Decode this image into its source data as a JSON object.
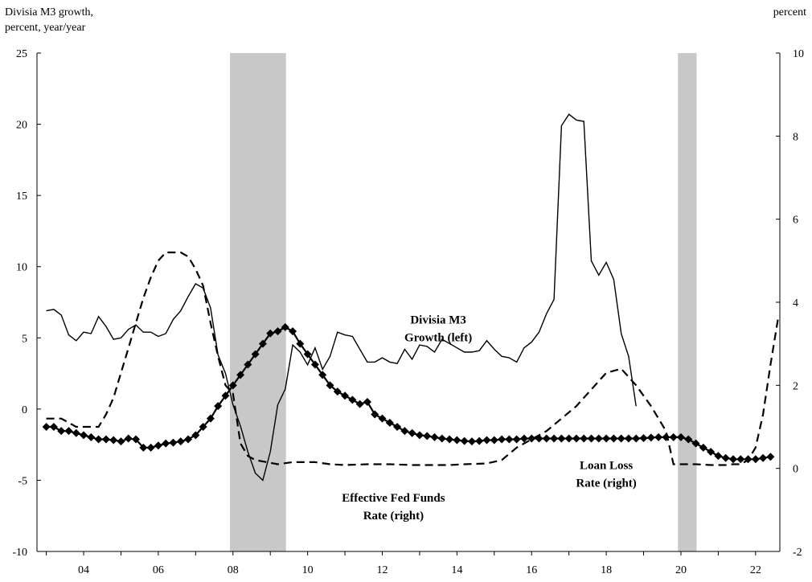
{
  "chart_data": {
    "type": "line",
    "left_axis_title_line1": "Divisia  M3 growth,",
    "left_axis_title_line2": "percent,  year/year",
    "right_axis_title": "percent",
    "ylim_left": [
      -10,
      25
    ],
    "ylim_right": [
      -2,
      10
    ],
    "xlim": [
      2002.75,
      2022.65
    ],
    "left_ticks": [
      "25",
      "20",
      "15",
      "10",
      "5",
      "0",
      "-5",
      "-10"
    ],
    "left_tick_values": [
      25,
      20,
      15,
      10,
      5,
      0,
      -5,
      -10
    ],
    "right_ticks": [
      "10",
      "8",
      "6",
      "4",
      "2",
      "0",
      "-2"
    ],
    "right_tick_values": [
      10,
      8,
      6,
      4,
      2,
      0,
      -2
    ],
    "x_tick_labels": [
      "04",
      "06",
      "08",
      "10",
      "12",
      "14",
      "16",
      "18",
      "20",
      "22"
    ],
    "x_tick_values": [
      2004,
      2006,
      2008,
      2010,
      2012,
      2014,
      2016,
      2018,
      2020,
      2022
    ],
    "recessions": [
      [
        2007.92,
        2009.42
      ],
      [
        2019.92,
        2020.42
      ]
    ],
    "annotations": [
      {
        "lines": [
          "Divisia M3",
          "Growth (left)"
        ],
        "x": 2013.5,
        "y": 6.0,
        "axis": "left"
      },
      {
        "lines": [
          "Effective Fed Funds",
          "Rate (right)"
        ],
        "x": 2012.3,
        "y": -6.5,
        "axis": "left"
      },
      {
        "lines": [
          "Loan Loss",
          "Rate (right)"
        ],
        "x": 2018.0,
        "y": -4.2,
        "axis": "left"
      }
    ],
    "series": [
      {
        "key": "m3",
        "axis": "left",
        "style": "solid",
        "points": [
          [
            2003.0,
            6.9
          ],
          [
            2003.2,
            7.0
          ],
          [
            2003.4,
            6.6
          ],
          [
            2003.6,
            5.2
          ],
          [
            2003.8,
            4.8
          ],
          [
            2004.0,
            5.4
          ],
          [
            2004.2,
            5.3
          ],
          [
            2004.4,
            6.5
          ],
          [
            2004.6,
            5.8
          ],
          [
            2004.8,
            4.9
          ],
          [
            2005.0,
            5.0
          ],
          [
            2005.2,
            5.6
          ],
          [
            2005.4,
            5.9
          ],
          [
            2005.6,
            5.4
          ],
          [
            2005.8,
            5.4
          ],
          [
            2006.0,
            5.1
          ],
          [
            2006.2,
            5.3
          ],
          [
            2006.4,
            6.3
          ],
          [
            2006.6,
            6.9
          ],
          [
            2006.8,
            7.9
          ],
          [
            2007.0,
            8.8
          ],
          [
            2007.2,
            8.5
          ],
          [
            2007.4,
            7.1
          ],
          [
            2007.6,
            3.8
          ],
          [
            2007.8,
            2.5
          ],
          [
            2008.0,
            0.3
          ],
          [
            2008.2,
            -1.2
          ],
          [
            2008.4,
            -3.0
          ],
          [
            2008.6,
            -4.5
          ],
          [
            2008.8,
            -5.0
          ],
          [
            2009.0,
            -3.0
          ],
          [
            2009.2,
            0.3
          ],
          [
            2009.4,
            1.4
          ],
          [
            2009.6,
            4.5
          ],
          [
            2009.8,
            4.0
          ],
          [
            2010.0,
            3.1
          ],
          [
            2010.2,
            4.3
          ],
          [
            2010.4,
            2.8
          ],
          [
            2010.6,
            3.7
          ],
          [
            2010.8,
            5.4
          ],
          [
            2011.0,
            5.2
          ],
          [
            2011.2,
            5.1
          ],
          [
            2011.4,
            4.2
          ],
          [
            2011.6,
            3.3
          ],
          [
            2011.8,
            3.3
          ],
          [
            2012.0,
            3.6
          ],
          [
            2012.2,
            3.3
          ],
          [
            2012.4,
            3.2
          ],
          [
            2012.6,
            4.2
          ],
          [
            2012.8,
            3.5
          ],
          [
            2013.0,
            4.5
          ],
          [
            2013.2,
            4.4
          ],
          [
            2013.4,
            4.0
          ],
          [
            2013.6,
            4.9
          ],
          [
            2013.8,
            4.6
          ],
          [
            2014.0,
            4.3
          ],
          [
            2014.2,
            4.0
          ],
          [
            2014.4,
            4.0
          ],
          [
            2014.6,
            4.1
          ],
          [
            2014.8,
            4.8
          ],
          [
            2015.0,
            4.2
          ],
          [
            2015.2,
            3.7
          ],
          [
            2015.4,
            3.6
          ],
          [
            2015.6,
            3.3
          ],
          [
            2015.8,
            4.3
          ],
          [
            2016.0,
            4.7
          ],
          [
            2016.2,
            5.4
          ],
          [
            2016.4,
            6.7
          ],
          [
            2016.6,
            7.7
          ],
          [
            2016.8,
            19.9
          ],
          [
            2017.0,
            20.7
          ],
          [
            2017.2,
            20.3
          ],
          [
            2017.4,
            20.2
          ],
          [
            2017.6,
            10.4
          ],
          [
            2017.8,
            9.4
          ],
          [
            2018.0,
            10.3
          ],
          [
            2018.2,
            9.1
          ],
          [
            2018.4,
            5.3
          ],
          [
            2018.6,
            3.7
          ],
          [
            2018.8,
            0.2
          ]
        ]
      },
      {
        "key": "fedfunds",
        "axis": "right",
        "style": "marker",
        "points": [
          [
            2003.0,
            1.0
          ],
          [
            2003.2,
            1.0
          ],
          [
            2003.4,
            0.9
          ],
          [
            2003.6,
            0.9
          ],
          [
            2003.8,
            0.85
          ],
          [
            2004.0,
            0.8
          ],
          [
            2004.2,
            0.75
          ],
          [
            2004.4,
            0.7
          ],
          [
            2004.6,
            0.7
          ],
          [
            2004.8,
            0.68
          ],
          [
            2005.0,
            0.65
          ],
          [
            2005.2,
            0.72
          ],
          [
            2005.4,
            0.7
          ],
          [
            2005.6,
            0.5
          ],
          [
            2005.8,
            0.5
          ],
          [
            2006.0,
            0.55
          ],
          [
            2006.2,
            0.6
          ],
          [
            2006.4,
            0.62
          ],
          [
            2006.6,
            0.65
          ],
          [
            2006.8,
            0.7
          ],
          [
            2007.0,
            0.8
          ],
          [
            2007.2,
            1.0
          ],
          [
            2007.4,
            1.2
          ],
          [
            2007.6,
            1.5
          ],
          [
            2007.8,
            1.75
          ],
          [
            2008.0,
            2.0
          ],
          [
            2008.2,
            2.25
          ],
          [
            2008.4,
            2.5
          ],
          [
            2008.6,
            2.75
          ],
          [
            2008.8,
            3.0
          ],
          [
            2009.0,
            3.25
          ],
          [
            2009.2,
            3.3
          ],
          [
            2009.4,
            3.4
          ],
          [
            2009.6,
            3.3
          ],
          [
            2009.8,
            3.0
          ],
          [
            2010.0,
            2.75
          ],
          [
            2010.2,
            2.5
          ],
          [
            2010.4,
            2.25
          ],
          [
            2010.6,
            2.0
          ],
          [
            2010.8,
            1.85
          ],
          [
            2011.0,
            1.75
          ],
          [
            2011.2,
            1.65
          ],
          [
            2011.4,
            1.55
          ],
          [
            2011.6,
            1.6
          ],
          [
            2011.8,
            1.3
          ],
          [
            2012.0,
            1.2
          ],
          [
            2012.2,
            1.1
          ],
          [
            2012.4,
            1.0
          ],
          [
            2012.6,
            0.9
          ],
          [
            2012.8,
            0.85
          ],
          [
            2013.0,
            0.8
          ],
          [
            2013.2,
            0.78
          ],
          [
            2013.4,
            0.75
          ],
          [
            2013.6,
            0.72
          ],
          [
            2013.8,
            0.7
          ],
          [
            2014.0,
            0.68
          ],
          [
            2014.2,
            0.66
          ],
          [
            2014.4,
            0.65
          ],
          [
            2014.6,
            0.66
          ],
          [
            2014.8,
            0.68
          ],
          [
            2015.0,
            0.68
          ],
          [
            2015.2,
            0.7
          ],
          [
            2015.4,
            0.7
          ],
          [
            2015.6,
            0.7
          ],
          [
            2015.8,
            0.72
          ],
          [
            2016.0,
            0.72
          ],
          [
            2016.2,
            0.72
          ],
          [
            2016.4,
            0.72
          ],
          [
            2016.6,
            0.72
          ],
          [
            2016.8,
            0.72
          ],
          [
            2017.0,
            0.72
          ],
          [
            2017.2,
            0.72
          ],
          [
            2017.4,
            0.72
          ],
          [
            2017.6,
            0.72
          ],
          [
            2017.8,
            0.72
          ],
          [
            2018.0,
            0.72
          ],
          [
            2018.2,
            0.72
          ],
          [
            2018.4,
            0.72
          ],
          [
            2018.6,
            0.72
          ],
          [
            2018.8,
            0.72
          ],
          [
            2019.0,
            0.73
          ],
          [
            2019.2,
            0.74
          ],
          [
            2019.4,
            0.75
          ],
          [
            2019.6,
            0.75
          ],
          [
            2019.8,
            0.75
          ],
          [
            2020.0,
            0.75
          ],
          [
            2020.2,
            0.7
          ],
          [
            2020.4,
            0.6
          ],
          [
            2020.6,
            0.5
          ],
          [
            2020.8,
            0.4
          ],
          [
            2021.0,
            0.3
          ],
          [
            2021.2,
            0.25
          ],
          [
            2021.4,
            0.22
          ],
          [
            2021.6,
            0.22
          ],
          [
            2021.8,
            0.22
          ],
          [
            2022.0,
            0.22
          ],
          [
            2022.2,
            0.25
          ],
          [
            2022.4,
            0.28
          ]
        ]
      },
      {
        "key": "loanloss",
        "axis": "right",
        "style": "dashed",
        "points": [
          [
            2003.0,
            1.2
          ],
          [
            2003.4,
            1.2
          ],
          [
            2003.6,
            1.1
          ],
          [
            2003.8,
            1.0
          ],
          [
            2004.2,
            1.0
          ],
          [
            2004.4,
            1.0
          ],
          [
            2004.6,
            1.3
          ],
          [
            2004.8,
            1.7
          ],
          [
            2005.0,
            2.3
          ],
          [
            2005.2,
            2.9
          ],
          [
            2005.4,
            3.5
          ],
          [
            2005.6,
            4.1
          ],
          [
            2005.8,
            4.6
          ],
          [
            2006.0,
            5.0
          ],
          [
            2006.2,
            5.2
          ],
          [
            2006.6,
            5.2
          ],
          [
            2006.8,
            5.1
          ],
          [
            2007.0,
            4.8
          ],
          [
            2007.2,
            4.4
          ],
          [
            2007.4,
            3.5
          ],
          [
            2007.6,
            2.7
          ],
          [
            2007.8,
            2.0
          ],
          [
            2008.0,
            1.8
          ],
          [
            2008.2,
            0.6
          ],
          [
            2008.4,
            0.3
          ],
          [
            2008.6,
            0.2
          ],
          [
            2009.2,
            0.1
          ],
          [
            2009.6,
            0.15
          ],
          [
            2010.2,
            0.15
          ],
          [
            2010.6,
            0.1
          ],
          [
            2011.0,
            0.08
          ],
          [
            2011.6,
            0.1
          ],
          [
            2012.2,
            0.1
          ],
          [
            2012.8,
            0.08
          ],
          [
            2013.4,
            0.08
          ],
          [
            2013.8,
            0.08
          ],
          [
            2014.2,
            0.1
          ],
          [
            2014.8,
            0.12
          ],
          [
            2015.2,
            0.2
          ],
          [
            2015.6,
            0.5
          ],
          [
            2016.0,
            0.7
          ],
          [
            2016.4,
            0.9
          ],
          [
            2016.8,
            1.2
          ],
          [
            2017.2,
            1.5
          ],
          [
            2017.6,
            1.9
          ],
          [
            2018.0,
            2.3
          ],
          [
            2018.4,
            2.4
          ],
          [
            2018.8,
            2.0
          ],
          [
            2019.2,
            1.5
          ],
          [
            2019.6,
            0.9
          ],
          [
            2019.8,
            0.1
          ],
          [
            2020.0,
            0.1
          ],
          [
            2020.4,
            0.1
          ],
          [
            2020.8,
            0.08
          ],
          [
            2021.0,
            0.08
          ],
          [
            2021.2,
            0.08
          ],
          [
            2021.4,
            0.1
          ],
          [
            2021.6,
            0.1
          ],
          [
            2021.8,
            0.2
          ],
          [
            2022.0,
            0.5
          ],
          [
            2022.2,
            1.3
          ],
          [
            2022.4,
            2.5
          ],
          [
            2022.6,
            3.6
          ]
        ]
      }
    ]
  }
}
